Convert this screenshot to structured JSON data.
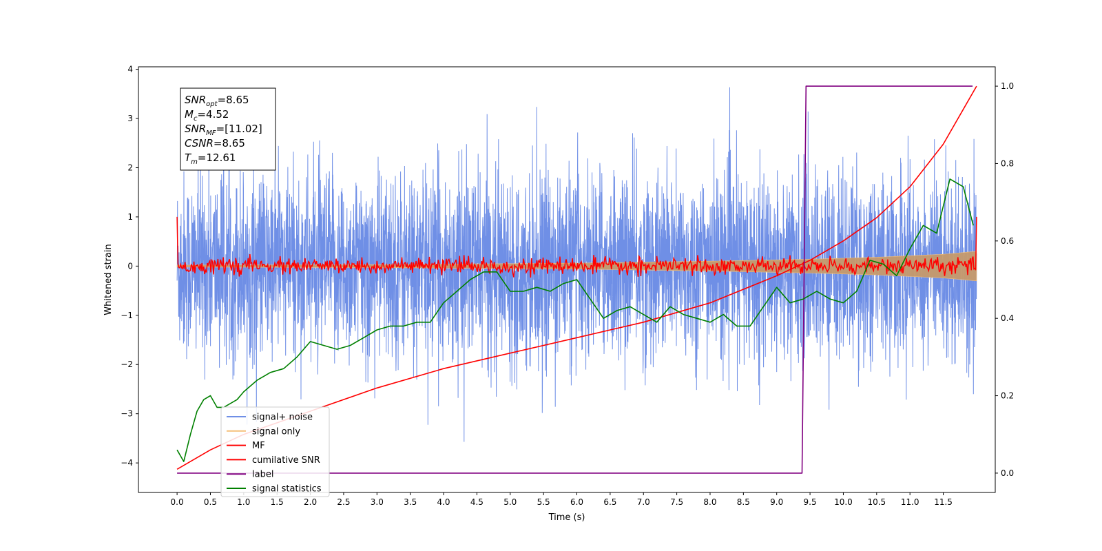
{
  "chart_data": {
    "type": "line",
    "xlabel": "Time (s)",
    "ylabel": "Whitened strain",
    "xlim": [
      -0.58,
      12.28
    ],
    "ylim_left": [
      -4.6,
      4.05
    ],
    "ylim_right": [
      -0.05,
      1.05
    ],
    "x_ticks": [
      0.0,
      0.5,
      1.0,
      1.5,
      2.0,
      2.5,
      3.0,
      3.5,
      4.0,
      4.5,
      5.0,
      5.5,
      6.0,
      6.5,
      7.0,
      7.5,
      8.0,
      8.5,
      9.0,
      9.5,
      10.0,
      10.5,
      11.0,
      11.5
    ],
    "x_tick_labels": [
      "0.0",
      "0.5",
      "1.0",
      "1.5",
      "2.0",
      "2.5",
      "3.0",
      "3.5",
      "4.0",
      "4.5",
      "5.0",
      "5.5",
      "6.0",
      "6.5",
      "7.0",
      "7.5",
      "8.0",
      "8.5",
      "9.0",
      "9.5",
      "10.0",
      "10.5",
      "11.0",
      "11.5"
    ],
    "y_left_ticks": [
      4,
      3,
      2,
      1,
      0,
      -1,
      -2,
      -3,
      -4
    ],
    "y_left_tick_labels": [
      "4",
      "3",
      "2",
      "1",
      "0",
      "−1",
      "−2",
      "−3",
      "−4"
    ],
    "y_right_ticks": [
      1.0,
      0.8,
      0.6,
      0.4,
      0.2,
      0.0
    ],
    "y_right_tick_labels": [
      "1.0",
      "0.8",
      "0.6",
      "0.4",
      "0.2",
      "0.0"
    ],
    "grid": false,
    "legend_placement": "lower-left",
    "annotation_lines": [
      {
        "main": "SNR",
        "sub": "opt",
        "rest": "=8.65"
      },
      {
        "main": "M",
        "sub": "c",
        "rest": "=4.52"
      },
      {
        "main": "SNR",
        "sub": "MF",
        "rest": "=[11.02]"
      },
      {
        "main": "CSNR",
        "sub": "",
        "rest": "=8.65"
      },
      {
        "main": "T",
        "sub": "m",
        "rest": "=12.61"
      }
    ],
    "series": [
      {
        "name": "signal+ noise",
        "axis": "left",
        "color": "#6f8fe6",
        "summary": {
          "x_range": [
            0.0,
            12.0
          ],
          "approx_mean": 0.0,
          "approx_std": 0.95,
          "min": -4.15,
          "max": 3.65
        }
      },
      {
        "name": "signal only",
        "axis": "left",
        "color": "#f5c07a",
        "envelope_amplitude": {
          "x": [
            0.0,
            3.0,
            6.0,
            8.0,
            9.5,
            10.5,
            11.5,
            12.0
          ],
          "amp": [
            0.02,
            0.03,
            0.06,
            0.1,
            0.14,
            0.18,
            0.24,
            0.3
          ]
        }
      },
      {
        "name": "MF",
        "axis": "left",
        "color": "#ff0000",
        "summary": {
          "x_range": [
            0.0,
            12.0
          ],
          "start_value": 1.0,
          "end_value": 1.0,
          "noise_amplitude": 0.08
        }
      },
      {
        "name": "cumilative SNR",
        "axis": "right",
        "color": "#ff0000",
        "x": [
          0.0,
          0.5,
          1.0,
          2.0,
          3.0,
          4.0,
          5.0,
          6.0,
          7.0,
          8.0,
          9.0,
          9.5,
          10.0,
          10.5,
          11.0,
          11.5,
          12.0
        ],
        "y": [
          0.01,
          0.06,
          0.1,
          0.16,
          0.22,
          0.27,
          0.31,
          0.35,
          0.39,
          0.44,
          0.51,
          0.55,
          0.6,
          0.66,
          0.74,
          0.85,
          1.0
        ]
      },
      {
        "name": "label",
        "axis": "right",
        "color": "#800080",
        "x": [
          0.0,
          9.38,
          9.44,
          11.94
        ],
        "y": [
          0.0,
          0.0,
          1.0,
          1.0
        ]
      },
      {
        "name": "signal statistics",
        "axis": "right",
        "color": "#008000",
        "x": [
          0.0,
          0.1,
          0.2,
          0.3,
          0.4,
          0.5,
          0.6,
          0.7,
          0.8,
          0.9,
          1.0,
          1.2,
          1.4,
          1.6,
          1.8,
          2.0,
          2.2,
          2.4,
          2.6,
          2.8,
          3.0,
          3.2,
          3.4,
          3.6,
          3.8,
          4.0,
          4.2,
          4.4,
          4.6,
          4.8,
          5.0,
          5.2,
          5.4,
          5.6,
          5.8,
          6.0,
          6.2,
          6.4,
          6.6,
          6.8,
          7.0,
          7.2,
          7.4,
          7.6,
          7.8,
          8.0,
          8.2,
          8.4,
          8.6,
          8.8,
          9.0,
          9.2,
          9.4,
          9.6,
          9.8,
          10.0,
          10.2,
          10.4,
          10.6,
          10.8,
          11.0,
          11.2,
          11.4,
          11.6,
          11.8,
          11.95
        ],
        "y": [
          0.06,
          0.03,
          0.1,
          0.16,
          0.19,
          0.2,
          0.17,
          0.17,
          0.18,
          0.19,
          0.21,
          0.24,
          0.26,
          0.27,
          0.3,
          0.34,
          0.33,
          0.32,
          0.33,
          0.35,
          0.37,
          0.38,
          0.38,
          0.39,
          0.39,
          0.44,
          0.47,
          0.5,
          0.52,
          0.52,
          0.47,
          0.47,
          0.48,
          0.47,
          0.49,
          0.5,
          0.45,
          0.4,
          0.42,
          0.43,
          0.41,
          0.39,
          0.43,
          0.41,
          0.4,
          0.39,
          0.41,
          0.38,
          0.38,
          0.43,
          0.48,
          0.44,
          0.45,
          0.47,
          0.45,
          0.44,
          0.47,
          0.55,
          0.54,
          0.51,
          0.58,
          0.64,
          0.62,
          0.76,
          0.74,
          0.64
        ]
      }
    ]
  }
}
